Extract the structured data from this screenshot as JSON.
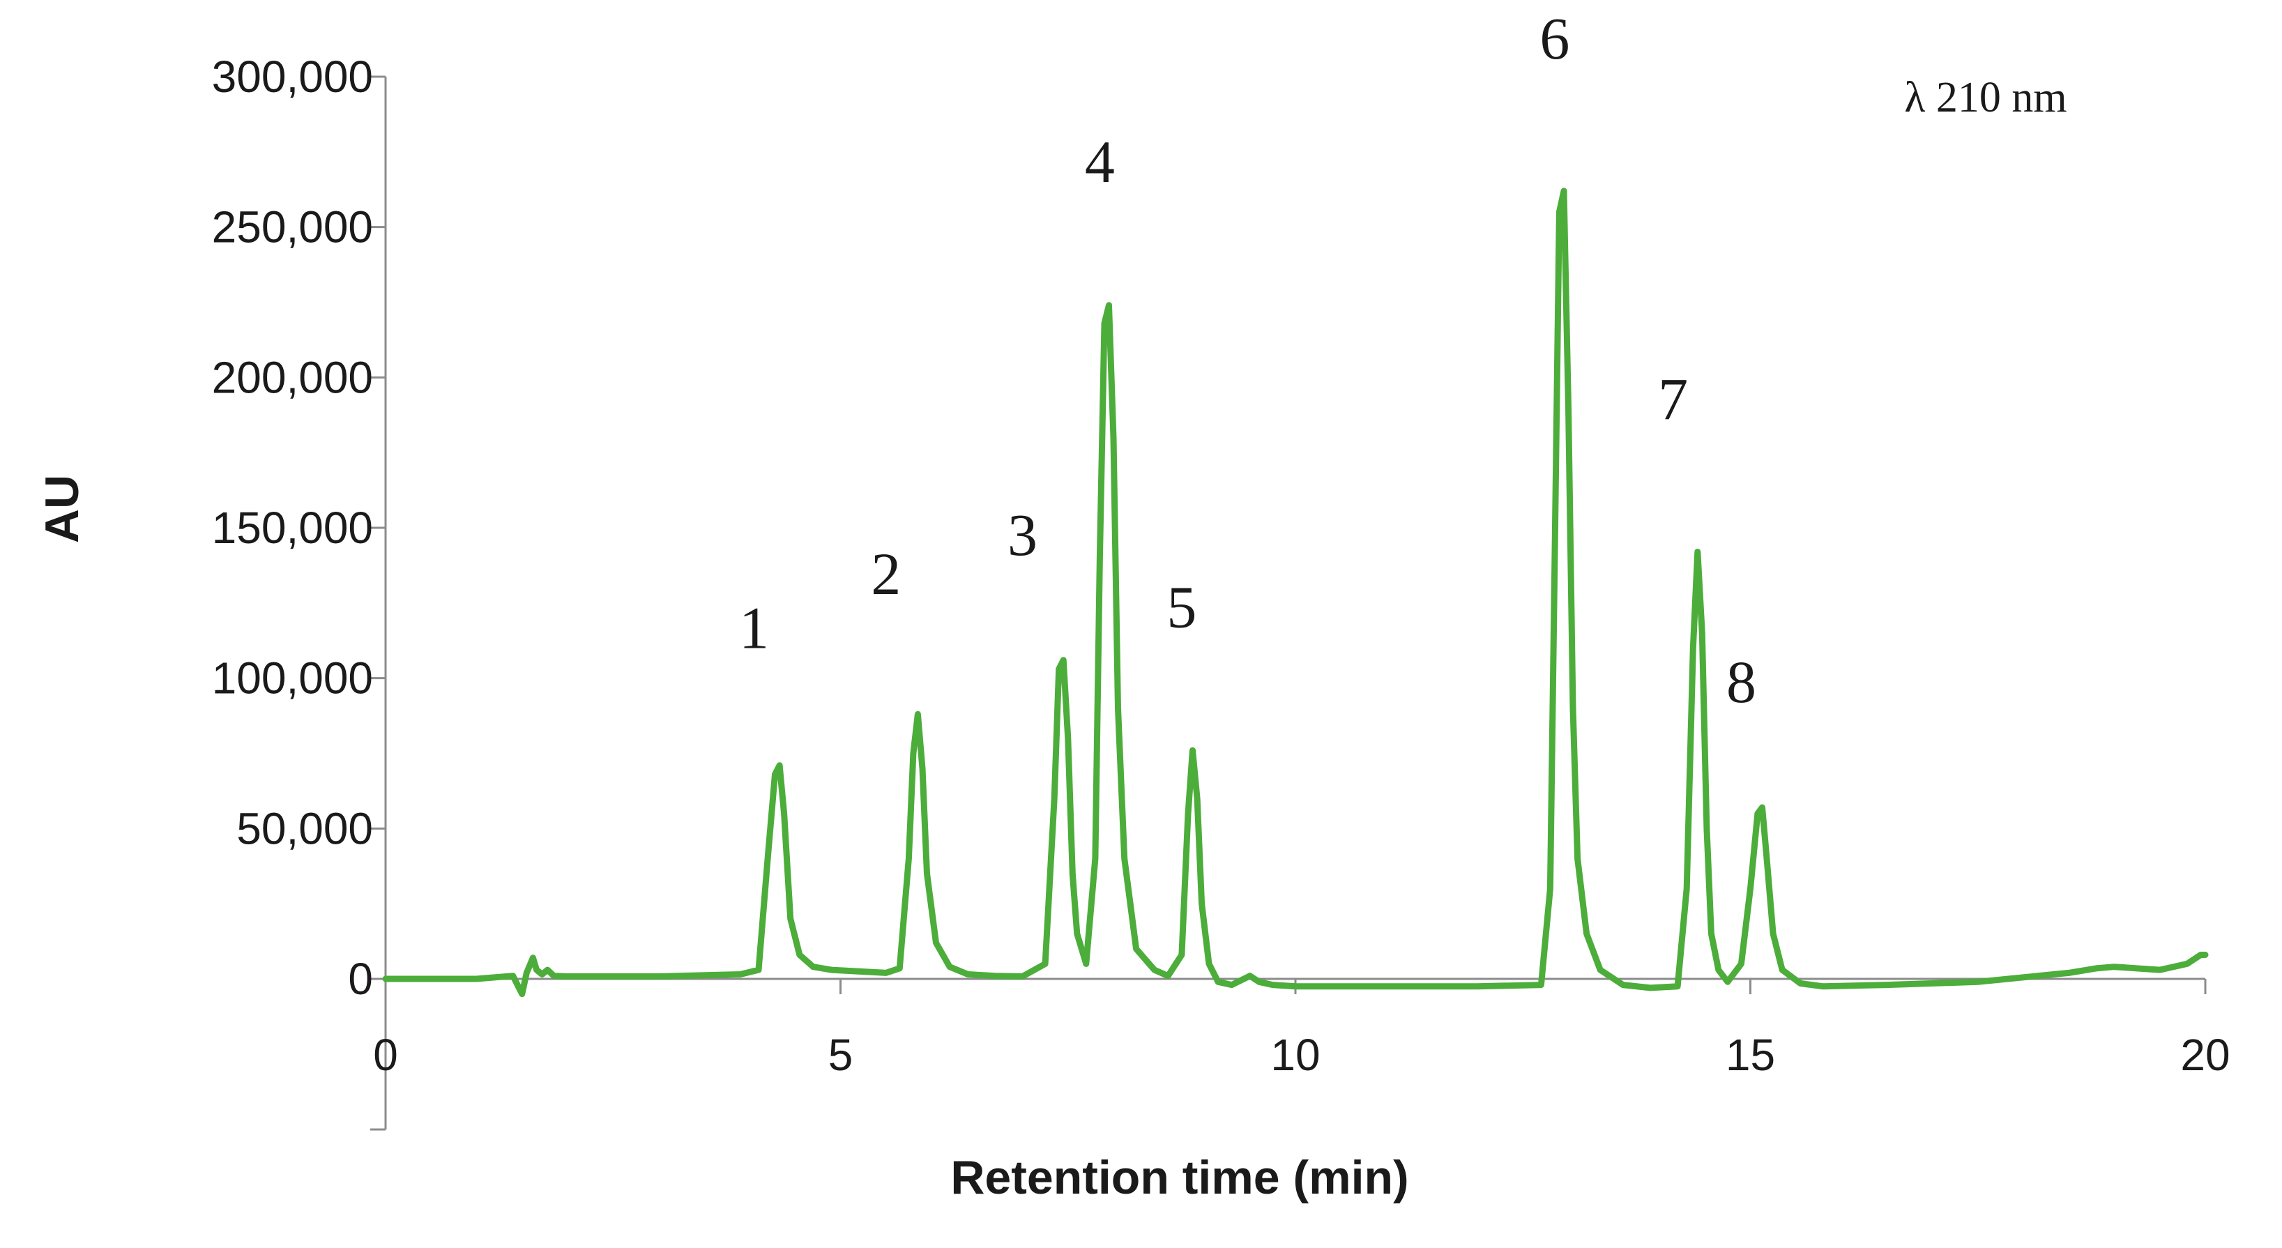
{
  "chart_data": {
    "type": "line",
    "title": "",
    "xlabel": "Retention time (min)",
    "ylabel": "AU",
    "xlim": [
      0,
      20
    ],
    "ylim": [
      -50000,
      300000
    ],
    "x_ticks": [
      0,
      5,
      10,
      15,
      20
    ],
    "x_tick_labels": [
      "0",
      "5",
      "10",
      "15",
      "20"
    ],
    "y_ticks": [
      0,
      50000,
      100000,
      150000,
      200000,
      250000,
      300000
    ],
    "y_tick_labels": [
      "0",
      "50,000",
      "100,000",
      "150,000",
      "200,000",
      "250,000",
      "300,000"
    ],
    "grid": false,
    "legend": "none",
    "annotation": "λ 210 nm",
    "series": [
      {
        "color": "#4cad3a",
        "x": [
          0.0,
          1.0,
          1.4,
          1.5,
          1.55,
          1.62,
          1.66,
          1.72,
          1.78,
          1.85,
          2.0,
          3.0,
          3.9,
          4.1,
          4.2,
          4.28,
          4.33,
          4.38,
          4.45,
          4.55,
          4.7,
          4.9,
          5.2,
          5.5,
          5.65,
          5.75,
          5.8,
          5.85,
          5.9,
          5.95,
          6.05,
          6.2,
          6.4,
          6.7,
          7.0,
          7.25,
          7.35,
          7.4,
          7.45,
          7.5,
          7.55,
          7.6,
          7.7,
          7.8,
          7.85,
          7.9,
          7.95,
          8.0,
          8.05,
          8.12,
          8.25,
          8.45,
          8.6,
          8.75,
          8.82,
          8.87,
          8.92,
          8.97,
          9.05,
          9.15,
          9.3,
          9.5,
          9.6,
          9.75,
          10.0,
          11.0,
          12.0,
          12.7,
          12.8,
          12.85,
          12.9,
          12.95,
          13.0,
          13.05,
          13.1,
          13.2,
          13.35,
          13.6,
          13.9,
          14.2,
          14.3,
          14.37,
          14.42,
          14.47,
          14.52,
          14.57,
          14.65,
          14.75,
          14.9,
          15.0,
          15.08,
          15.13,
          15.18,
          15.25,
          15.35,
          15.55,
          15.8,
          16.5,
          17.5,
          18.0,
          18.5,
          18.8,
          19.0,
          19.5,
          19.8,
          19.95,
          20.0
        ],
        "y": [
          0,
          0,
          1000,
          -5000,
          2000,
          7000,
          3000,
          1500,
          3000,
          1000,
          800,
          800,
          1500,
          3000,
          40000,
          68000,
          71000,
          55000,
          20000,
          8000,
          4000,
          3000,
          2500,
          2000,
          3500,
          40000,
          75000,
          88000,
          70000,
          35000,
          12000,
          4000,
          1500,
          1000,
          800,
          5000,
          60000,
          103000,
          106000,
          80000,
          35000,
          15000,
          5000,
          40000,
          140000,
          218000,
          224000,
          180000,
          90000,
          40000,
          10000,
          3000,
          1000,
          8000,
          55000,
          76000,
          60000,
          25000,
          5000,
          -1000,
          -2000,
          1000,
          -1000,
          -2000,
          -2500,
          -2500,
          -2500,
          -2000,
          30000,
          140000,
          255000,
          262000,
          190000,
          90000,
          40000,
          15000,
          3000,
          -2000,
          -3000,
          -2500,
          30000,
          110000,
          142000,
          115000,
          50000,
          15000,
          3000,
          -1000,
          5000,
          30000,
          55000,
          57000,
          40000,
          15000,
          3000,
          -1500,
          -2500,
          -2000,
          -1000,
          500,
          2000,
          3500,
          4000,
          3000,
          5000,
          8000,
          8000
        ]
      }
    ],
    "peak_labels": [
      {
        "text": "1",
        "x": 4.05,
        "y": 110000
      },
      {
        "text": "2",
        "x": 5.5,
        "y": 128000
      },
      {
        "text": "3",
        "x": 7.0,
        "y": 141000
      },
      {
        "text": "4",
        "x": 7.85,
        "y": 265000
      },
      {
        "text": "5",
        "x": 8.75,
        "y": 117000
      },
      {
        "text": "6",
        "x": 12.85,
        "y": 306000
      },
      {
        "text": "7",
        "x": 14.15,
        "y": 186000
      },
      {
        "text": "8",
        "x": 14.9,
        "y": 92000
      }
    ]
  }
}
